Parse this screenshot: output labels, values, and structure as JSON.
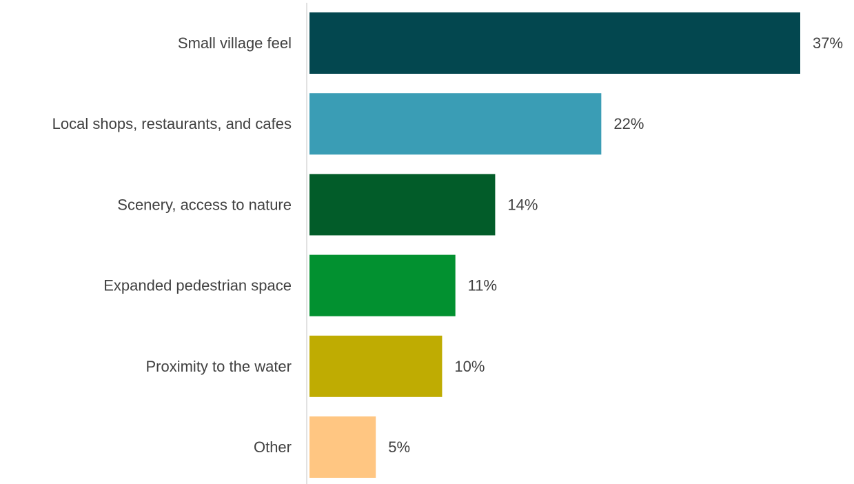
{
  "chart_data": {
    "type": "bar",
    "orientation": "horizontal",
    "categories": [
      "Small village feel",
      "Local shops, restaurants, and cafes",
      "Scenery, access to nature",
      "Expanded pedestrian space",
      "Proximity to the water",
      "Other"
    ],
    "values": [
      37,
      22,
      14,
      11,
      10,
      5
    ],
    "value_labels": [
      "37%",
      "22%",
      "14%",
      "11%",
      "10%",
      "5%"
    ],
    "unit": "%",
    "colors": [
      "#03474F",
      "#3A9DB5",
      "#025C29",
      "#029130",
      "#BFAC02",
      "#FFC682"
    ],
    "title": "",
    "xlabel": "",
    "ylabel": "",
    "xlim": [
      0,
      37
    ],
    "grid": false,
    "legend": "none"
  }
}
